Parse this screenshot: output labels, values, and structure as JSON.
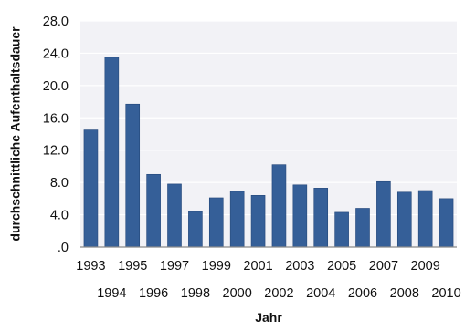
{
  "chart_data": {
    "type": "bar",
    "title": "",
    "xlabel": "Jahr",
    "ylabel": "durchschnittliche Aufenthaltsdauer",
    "ylim": [
      0,
      28
    ],
    "yticks": [
      0,
      4,
      8,
      12,
      16,
      20,
      24,
      28
    ],
    "ytick_labels": [
      ".0",
      "4.0",
      "8.0",
      "12.0",
      "16.0",
      "20.0",
      "24.0",
      "28.0"
    ],
    "grid": true,
    "categories": [
      "1993",
      "1994",
      "1995",
      "1996",
      "1997",
      "1998",
      "1999",
      "2000",
      "2001",
      "2002",
      "2003",
      "2004",
      "2005",
      "2006",
      "2007",
      "2008",
      "2009",
      "2010"
    ],
    "values": [
      14.5,
      23.5,
      17.7,
      9.0,
      7.8,
      4.4,
      6.1,
      6.9,
      6.4,
      10.2,
      7.7,
      7.3,
      4.3,
      4.8,
      8.1,
      6.8,
      7.0,
      6.0
    ],
    "colors": {
      "bar": "#355f98",
      "bar_edge": "#24477a",
      "plot_background": "#f2f2f6",
      "gridline": "#ffffff",
      "axis": "#8a8a8a"
    }
  }
}
